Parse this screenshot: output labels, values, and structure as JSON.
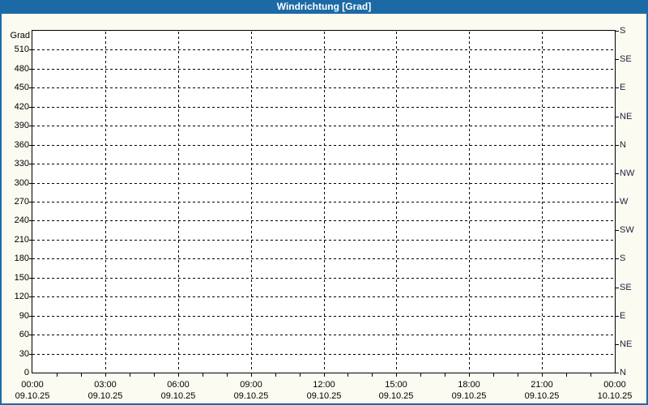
{
  "header": {
    "title": "Windrichtung [Grad]"
  },
  "colors": {
    "accent_blue": "#1C6AA5",
    "panel_background": "#FBFBF1",
    "plot_background": "#FFFFFF",
    "grid": "#000000",
    "compass_label_text": "#1F1F3D",
    "title_text": "#FFFFFF"
  },
  "y_axis_left": {
    "label": "Grad",
    "ticks": [
      0,
      30,
      60,
      90,
      120,
      150,
      180,
      210,
      240,
      270,
      300,
      330,
      360,
      390,
      420,
      450,
      480,
      510
    ]
  },
  "y_axis_right": {
    "compass_top_to_bottom": [
      "S",
      "SE",
      "E",
      "NE",
      "N",
      "NW",
      "W",
      "SW",
      "S",
      "SE",
      "E",
      "NE",
      "N"
    ],
    "step_degrees": 45
  },
  "x_axis": {
    "ticks": [
      {
        "time": "00:00",
        "date": "09.10.25"
      },
      {
        "time": "03:00",
        "date": "09.10.25"
      },
      {
        "time": "06:00",
        "date": "09.10.25"
      },
      {
        "time": "09:00",
        "date": "09.10.25"
      },
      {
        "time": "12:00",
        "date": "09.10.25"
      },
      {
        "time": "15:00",
        "date": "09.10.25"
      },
      {
        "time": "18:00",
        "date": "09.10.25"
      },
      {
        "time": "21:00",
        "date": "09.10.25"
      },
      {
        "time": "00:00",
        "date": "10.10.25"
      }
    ],
    "minor_tick_interval_hours": 1,
    "major_tick_interval_hours": 3
  },
  "chart_data": {
    "type": "line",
    "title": "Windrichtung [Grad]",
    "ylabel": "Grad",
    "ylim": [
      0,
      540
    ],
    "y_tick_step_left_deg": 30,
    "y_right_compass_step_deg": 45,
    "x_range": [
      "09.10.25 00:00",
      "10.10.25 00:00"
    ],
    "x_tick_interval_hours": 3,
    "grid": true,
    "legend": false,
    "series": [],
    "note": "empty plot area - no wind direction data points drawn"
  }
}
